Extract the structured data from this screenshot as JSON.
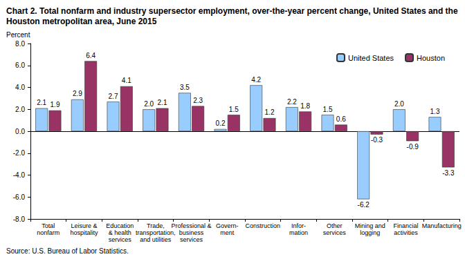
{
  "chart_data": {
    "type": "bar",
    "title": "Chart 2. Total nonfarm and industry supersector employment, over-the-year percent change, United States and the Houston metropolitan area, June 2015",
    "y_label": "Percent",
    "source": "Source: U.S. Bureau of Labor Statistics.",
    "categories": [
      "Total\nnonfarm",
      "Leisure &\nhospitality",
      "Education\n& health\nservices",
      "Trade,\ntransportation,\nand utilities",
      "Professional &\nbusiness\nservices",
      "Govern-\nment",
      "Construction",
      "Infor-\nmation",
      "Other\nservices",
      "Mining and\nlogging",
      "Financial\nactivities",
      "Manufacturing"
    ],
    "series": [
      {
        "name": "United States",
        "color": "#99ccff",
        "values": [
          2.1,
          2.9,
          2.7,
          2.0,
          3.5,
          0.2,
          4.2,
          2.2,
          1.5,
          -6.2,
          2.0,
          1.3
        ],
        "value_labels": [
          "2.1",
          "2.9",
          "2.7",
          "2.0",
          "3.5",
          "0.2",
          "4.2",
          "2.2",
          "1.5",
          "-6.2",
          "2.0",
          "1.3"
        ]
      },
      {
        "name": "Houston",
        "color": "#993366",
        "values": [
          1.9,
          6.4,
          4.1,
          2.1,
          2.3,
          1.5,
          1.2,
          1.8,
          0.6,
          -0.3,
          -0.9,
          -3.3
        ],
        "value_labels": [
          "1.9",
          "6.4",
          "4.1",
          "2.1",
          "2.3",
          "1.5",
          "1.2",
          "1.8",
          "0.6",
          "-0.3",
          "-0.9",
          "-3.3"
        ]
      }
    ],
    "ylim": [
      -8,
      8
    ],
    "yticks": [
      {
        "value": -8,
        "label": "-8.0"
      },
      {
        "value": -6,
        "label": "-6.0"
      },
      {
        "value": -4,
        "label": "-4.0"
      },
      {
        "value": -2,
        "label": "-2.0"
      },
      {
        "value": 0,
        "label": "0.0"
      },
      {
        "value": 2,
        "label": "2.0"
      },
      {
        "value": 4,
        "label": "4.0"
      },
      {
        "value": 6,
        "label": "6.0"
      },
      {
        "value": 8,
        "label": "8.0"
      }
    ],
    "grid": false,
    "legend": "upper right",
    "data_labels": true
  }
}
